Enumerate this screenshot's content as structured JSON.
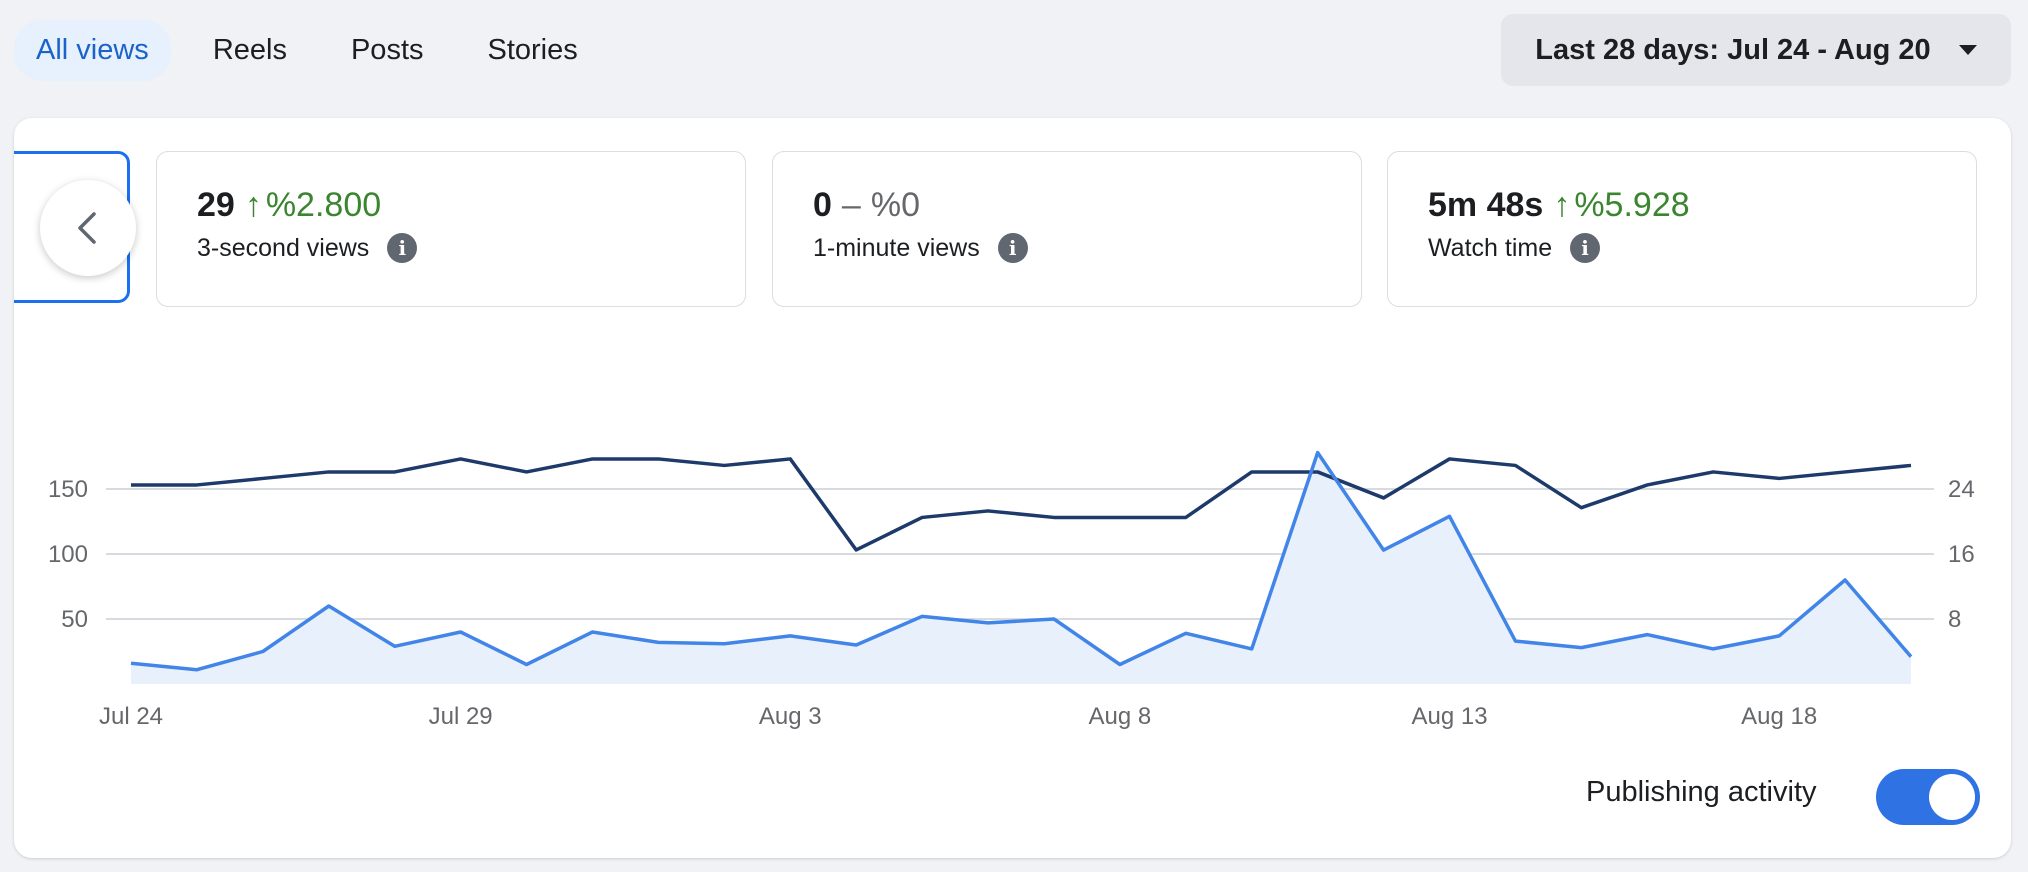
{
  "tabs": [
    {
      "label": "All views",
      "active": true
    },
    {
      "label": "Reels",
      "active": false
    },
    {
      "label": "Posts",
      "active": false
    },
    {
      "label": "Stories",
      "active": false
    }
  ],
  "date_range": {
    "label": "Last 28 days: Jul 24 - Aug 20"
  },
  "metrics": [
    {
      "value": "29",
      "arrow": "↑",
      "change": "%2.800",
      "label": "3-second views"
    },
    {
      "value": "0",
      "arrow": "–",
      "change": "%0",
      "label": "1-minute views"
    },
    {
      "value": "5m 48s",
      "arrow": "↑",
      "change": "%5.928",
      "label": "Watch time"
    }
  ],
  "publishing": {
    "label": "Publishing activity",
    "enabled": true
  },
  "colors": {
    "primary_series": "#4285e8",
    "secondary_series": "#1d3a6b",
    "area_fill": "#e8f0fc",
    "positive": "#3b8530"
  },
  "chart_data": {
    "type": "line",
    "x_tick_labels": [
      "Jul 24",
      "Jul 29",
      "Aug 3",
      "Aug 8",
      "Aug 13",
      "Aug 18"
    ],
    "left_axis": {
      "ticks": [
        50,
        100,
        150
      ],
      "range": [
        0,
        200
      ]
    },
    "right_axis": {
      "ticks": [
        8,
        16,
        24
      ],
      "range": [
        0,
        32
      ]
    },
    "grid": true,
    "series": [
      {
        "axis": "left",
        "area": true,
        "values": [
          16,
          11,
          25,
          60,
          29,
          40,
          15,
          40,
          32,
          31,
          37,
          30,
          52,
          47,
          50,
          15,
          39,
          27,
          178,
          103,
          129,
          33,
          28,
          38,
          27,
          37,
          80,
          21
        ]
      },
      {
        "axis": "right",
        "area": false,
        "values": [
          24.5,
          24.5,
          25.3,
          26.1,
          26.1,
          27.7,
          26.1,
          27.7,
          27.7,
          26.9,
          27.7,
          16.5,
          20.5,
          21.3,
          20.5,
          20.5,
          20.5,
          26.1,
          26.1,
          22.9,
          27.7,
          26.9,
          21.7,
          24.5,
          26.1,
          25.3,
          26.1,
          26.9
        ]
      }
    ]
  }
}
